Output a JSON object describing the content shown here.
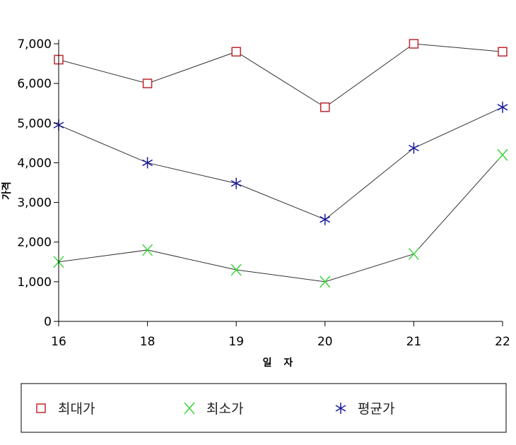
{
  "chart_data": {
    "type": "line",
    "categories": [
      "16",
      "18",
      "19",
      "20",
      "21",
      "22"
    ],
    "xlabel": "일 자",
    "ylabel": "가격",
    "ylim": [
      0,
      7000
    ],
    "yticks": [
      0,
      1000,
      2000,
      3000,
      4000,
      5000,
      6000,
      7000
    ],
    "ytick_labels": [
      "0",
      "1,000",
      "2,000",
      "3,000",
      "4,000",
      "5,000",
      "6,000",
      "7,000"
    ],
    "grid": false,
    "legend_position": "bottom",
    "series": [
      {
        "name": "최대가",
        "marker": "square",
        "color": "#c0282d",
        "values": [
          6600,
          6000,
          6800,
          5400,
          7000,
          6800
        ]
      },
      {
        "name": "최소가",
        "marker": "x",
        "color": "#3bd63b",
        "values": [
          1500,
          1800,
          1300,
          1000,
          1700,
          4200
        ]
      },
      {
        "name": "평균가",
        "marker": "asterisk",
        "color": "#1a1a9c",
        "values": [
          4950,
          4000,
          3480,
          2570,
          4370,
          5400
        ]
      }
    ]
  }
}
